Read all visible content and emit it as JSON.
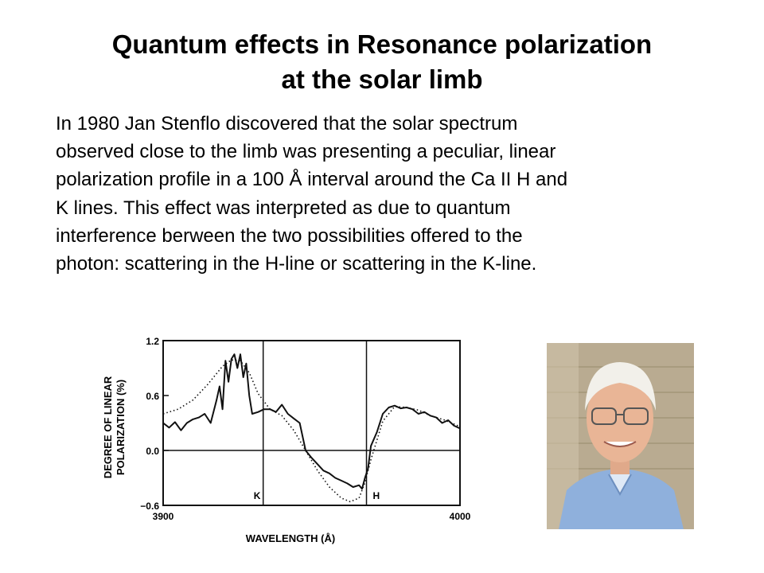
{
  "slide": {
    "title_line1": "Quantum effects in Resonance polarization",
    "title_line2": "at the solar limb",
    "paragraph_lines": [
      "In 1980 Jan Stenflo discovered that the solar spectrum",
      "observed close to the limb  was presenting a peculiar, linear",
      "polarization profile in a 100 Å interval around the Ca II H and",
      "K lines. This effect was interpreted as due to quantum",
      "interference berween the two possibilities offered to the",
      "photon: scattering in the H-line or scattering in the K-line."
    ]
  },
  "chart_data": {
    "type": "line",
    "xlabel": "WAVELENGTH (Å)",
    "ylabel_line1": "DEGREE OF LINEAR",
    "ylabel_line2": "POLARIZATION (%)",
    "xlim": [
      3900,
      4000
    ],
    "ylim": [
      -0.6,
      1.2
    ],
    "x_ticks": [
      "3900",
      "4000"
    ],
    "y_ticks": [
      "1.2",
      "0.6",
      "0.0",
      "−0.6"
    ],
    "y_tick_values": [
      1.2,
      0.6,
      0.0,
      -0.6
    ],
    "markers": [
      {
        "label": "K",
        "x": 3933.7
      },
      {
        "label": "H",
        "x": 3968.5
      }
    ],
    "zero_line": 0.0,
    "series": [
      {
        "style": "solid",
        "x": [
          3900,
          3902,
          3904,
          3906,
          3908,
          3910,
          3912,
          3914,
          3916,
          3918,
          3919,
          3920,
          3921,
          3922,
          3923,
          3924,
          3925,
          3926,
          3927,
          3928,
          3929,
          3930,
          3932,
          3934,
          3936,
          3938,
          3940,
          3942,
          3944,
          3946,
          3948,
          3950,
          3952,
          3954,
          3956,
          3958,
          3960,
          3962,
          3964,
          3966,
          3967,
          3968,
          3969,
          3970,
          3972,
          3974,
          3976,
          3978,
          3980,
          3982,
          3984,
          3986,
          3988,
          3990,
          3992,
          3994,
          3996,
          3998,
          4000
        ],
        "y": [
          0.3,
          0.25,
          0.31,
          0.22,
          0.3,
          0.34,
          0.36,
          0.4,
          0.3,
          0.55,
          0.7,
          0.45,
          0.98,
          0.75,
          1.0,
          1.05,
          0.9,
          1.05,
          0.8,
          0.95,
          0.6,
          0.4,
          0.42,
          0.45,
          0.45,
          0.42,
          0.5,
          0.4,
          0.35,
          0.3,
          0.0,
          -0.08,
          -0.15,
          -0.22,
          -0.25,
          -0.3,
          -0.33,
          -0.36,
          -0.4,
          -0.38,
          -0.42,
          -0.3,
          -0.2,
          0.05,
          0.2,
          0.4,
          0.47,
          0.49,
          0.46,
          0.47,
          0.45,
          0.4,
          0.42,
          0.38,
          0.36,
          0.3,
          0.33,
          0.27,
          0.24
        ]
      },
      {
        "style": "dotted",
        "x": [
          3900,
          3905,
          3910,
          3915,
          3920,
          3923,
          3926,
          3929,
          3932,
          3936,
          3940,
          3944,
          3948,
          3952,
          3956,
          3960,
          3963,
          3966,
          3968,
          3970,
          3974,
          3978,
          3982,
          3986,
          3990,
          3995,
          4000
        ],
        "y": [
          0.4,
          0.45,
          0.55,
          0.72,
          0.92,
          0.99,
          0.98,
          0.85,
          0.62,
          0.45,
          0.38,
          0.22,
          0.0,
          -0.22,
          -0.4,
          -0.52,
          -0.56,
          -0.52,
          -0.35,
          -0.1,
          0.32,
          0.48,
          0.47,
          0.44,
          0.38,
          0.33,
          0.26
        ]
      }
    ]
  },
  "photo": {
    "icon": "person-portrait-icon"
  }
}
